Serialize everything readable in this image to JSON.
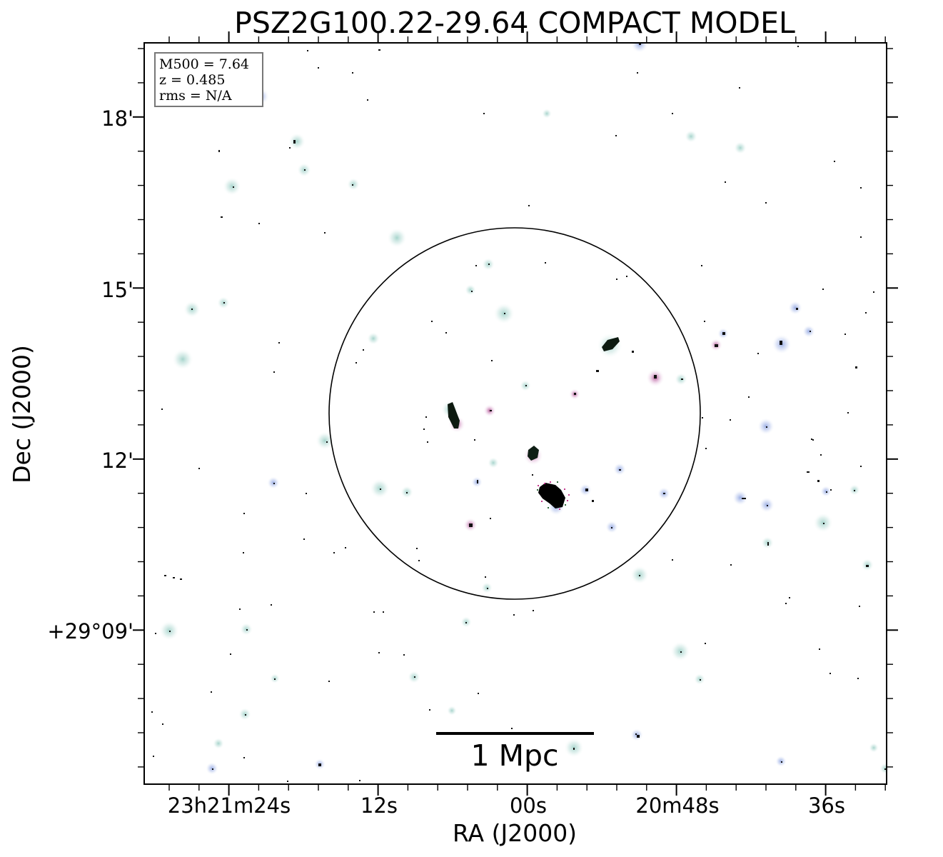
{
  "title": "PSZ2G100.22-29.64 COMPACT MODEL",
  "info_box": {
    "mass": "M500 = 7.64",
    "redshift": "z = 0.485",
    "rms": "rms = N/A"
  },
  "scale_bar": {
    "label": "1 Mpc"
  },
  "axes": {
    "x_label": "RA (J2000)",
    "y_label": "Dec (J2000)",
    "x_ticks": [
      "23h21m24s",
      "12s",
      "00s",
      "20m48s",
      "36s"
    ],
    "y_ticks": [
      "18'",
      "15'",
      "12'",
      "+29°09'"
    ]
  },
  "colors": {
    "halo": "#cfe8e4",
    "halo_blue": "#c9d4f2",
    "halo_pink": "#e2b9d9",
    "core_dark": "#111111",
    "frame": "#000000",
    "info_border": "#777777"
  }
}
